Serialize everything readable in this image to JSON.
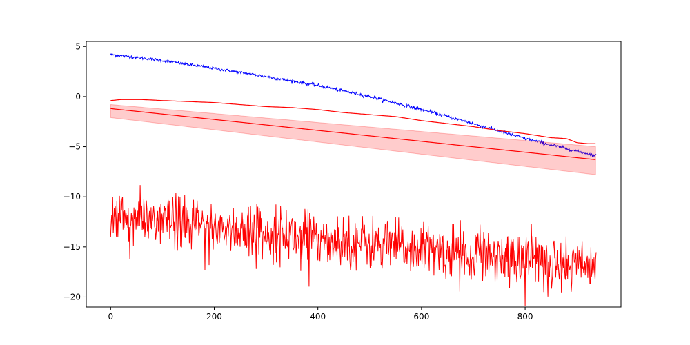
{
  "chart_data": {
    "type": "line",
    "title": "",
    "xlabel": "",
    "ylabel": "",
    "xlim": [
      -47,
      985
    ],
    "ylim": [
      -21.0,
      5.5
    ],
    "x_ticks": [
      0,
      200,
      400,
      600,
      800
    ],
    "y_ticks": [
      5,
      0,
      -5,
      -10,
      -15,
      -20
    ],
    "x_tick_labels": [
      "0",
      "200",
      "400",
      "600",
      "800"
    ],
    "y_tick_labels": [
      "5",
      "0",
      "−5",
      "−10",
      "−15",
      "−20"
    ],
    "grid": false,
    "legend": "none",
    "series": [
      {
        "style": "noisy-line",
        "color": "#0000ff",
        "noise": 0.08,
        "points": [
          [
            0,
            4.2
          ],
          [
            100,
            3.6
          ],
          [
            200,
            2.8
          ],
          [
            300,
            2.0
          ],
          [
            400,
            1.1
          ],
          [
            500,
            0.0
          ],
          [
            600,
            -1.3
          ],
          [
            700,
            -2.7
          ],
          [
            800,
            -4.2
          ],
          [
            937,
            -5.9
          ]
        ]
      },
      {
        "style": "line",
        "color": "#ff0000",
        "points": [
          [
            0,
            -0.4
          ],
          [
            20,
            -0.3
          ],
          [
            60,
            -0.3
          ],
          [
            100,
            -0.4
          ],
          [
            200,
            -0.6
          ],
          [
            300,
            -1.0
          ],
          [
            350,
            -1.1
          ],
          [
            400,
            -1.3
          ],
          [
            450,
            -1.6
          ],
          [
            500,
            -1.8
          ],
          [
            550,
            -2.0
          ],
          [
            600,
            -2.4
          ],
          [
            650,
            -2.7
          ],
          [
            700,
            -3.0
          ],
          [
            750,
            -3.4
          ],
          [
            800,
            -3.7
          ],
          [
            850,
            -4.1
          ],
          [
            880,
            -4.2
          ],
          [
            900,
            -4.6
          ],
          [
            920,
            -4.7
          ],
          [
            937,
            -4.7
          ]
        ]
      },
      {
        "style": "band-line",
        "color": "#ff0000",
        "fill": "#ff0000",
        "fill_opacity": 0.2,
        "center": [
          [
            0,
            -1.2
          ],
          [
            937,
            -6.3
          ]
        ],
        "band_upper": [
          [
            0,
            -0.8
          ],
          [
            937,
            -5.0
          ]
        ],
        "band_lower": [
          [
            0,
            -2.1
          ],
          [
            937,
            -7.8
          ]
        ]
      },
      {
        "style": "noisy-line",
        "color": "#ff0000",
        "noise": 1.3,
        "spikes": true,
        "points": [
          [
            0,
            -12.0
          ],
          [
            200,
            -13.0
          ],
          [
            400,
            -14.0
          ],
          [
            600,
            -15.3
          ],
          [
            800,
            -16.0
          ],
          [
            937,
            -17.0
          ]
        ]
      }
    ]
  }
}
